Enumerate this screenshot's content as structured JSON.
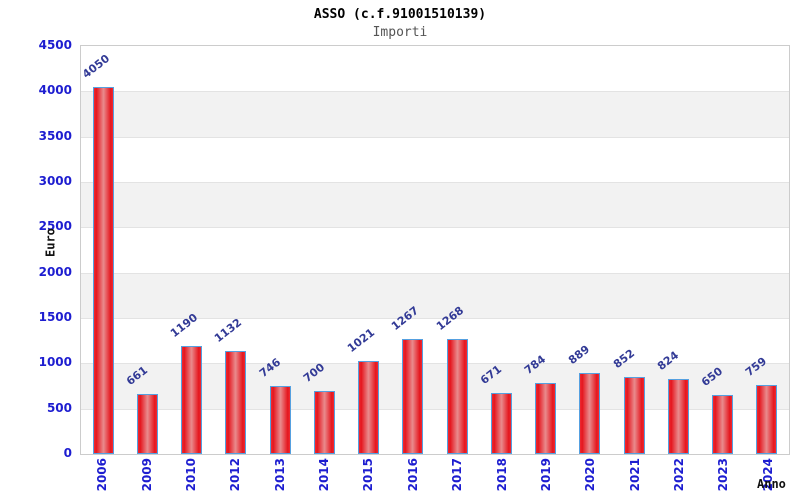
{
  "header": {
    "title": "ASSO (c.f.91001510139)",
    "subtitle": "Importi"
  },
  "chart_data": {
    "type": "bar",
    "title": "ASSO (c.f.91001510139)",
    "subtitle": "Importi",
    "xlabel": "Anno",
    "ylabel": "Euro",
    "categories": [
      "2006",
      "2009",
      "2010",
      "2012",
      "2013",
      "2014",
      "2015",
      "2016",
      "2017",
      "2018",
      "2019",
      "2020",
      "2021",
      "2022",
      "2023",
      "2024"
    ],
    "values": [
      4050,
      661,
      1190,
      1132,
      746,
      700,
      1021,
      1267,
      1268,
      671,
      784,
      889,
      852,
      824,
      650,
      759
    ],
    "ylim": [
      0,
      4500
    ],
    "yticks": [
      0,
      500,
      1000,
      1500,
      2000,
      2500,
      3000,
      3500,
      4000,
      4500
    ],
    "legend_position": "none",
    "grid": "alternating-horizontal-bands",
    "value_labels_rotation_deg": -38,
    "x_tick_rotation_deg": -90,
    "colors": {
      "bar_fill_edge": "#e5161e",
      "bar_fill_center": "#e98b8d",
      "bar_border": "#55a0e0",
      "tick_label": "#1d1dd0",
      "value_label": "#323a96",
      "band_alt": "#f2f2f2",
      "gridline": "#e3e3e3",
      "plot_border": "#cccccc",
      "title": "#000000",
      "subtitle": "#555555"
    }
  }
}
